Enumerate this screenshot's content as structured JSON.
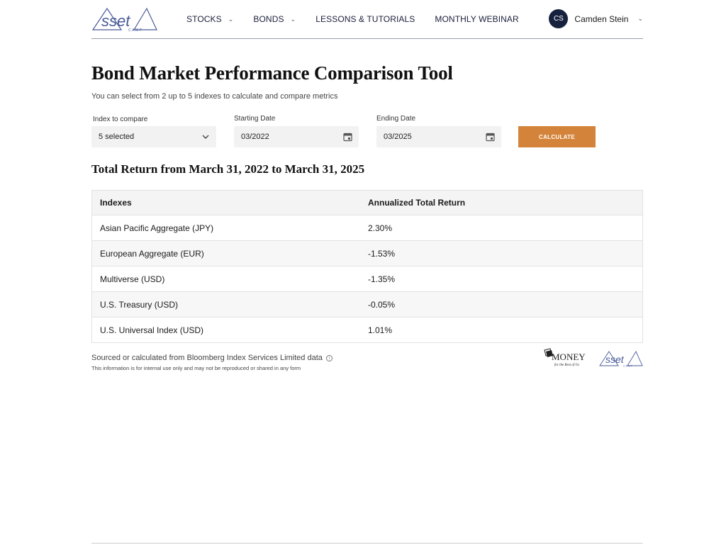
{
  "header": {
    "logo_text": "Asset",
    "logo_sub": "CAMP",
    "nav": [
      {
        "label": "STOCKS",
        "dropdown": true
      },
      {
        "label": "BONDS",
        "dropdown": true
      },
      {
        "label": "LESSONS & TUTORIALS",
        "dropdown": false
      },
      {
        "label": "MONTHLY WEBINAR",
        "dropdown": false
      }
    ],
    "user": {
      "initials": "CS",
      "name": "Camden Stein"
    }
  },
  "page": {
    "title": "Bond Market Performance Comparison Tool",
    "subtitle": "You can select from 2 up to 5 indexes to calculate and compare metrics"
  },
  "form": {
    "index_label": "Index to compare",
    "index_value": "5 selected",
    "start_label": "Starting Date",
    "start_value": "03/2022",
    "end_label": "Ending Date",
    "end_value": "03/2025",
    "calculate_label": "CALCULATE"
  },
  "results": {
    "title": "Total Return from March 31, 2022 to March 31, 2025",
    "columns": [
      "Indexes",
      "Annualized Total Return"
    ],
    "rows": [
      [
        "Asian Pacific Aggregate (JPY)",
        "2.30%"
      ],
      [
        "European Aggregate (EUR)",
        "-1.53%"
      ],
      [
        "Multiverse (USD)",
        "-1.35%"
      ],
      [
        "U.S. Treasury (USD)",
        "-0.05%"
      ],
      [
        "U.S. Universal Index (USD)",
        "1.01%"
      ]
    ]
  },
  "footer": {
    "source": "Sourced or calculated from Bloomberg Index Services Limited data",
    "disclaimer": "This information is for internal use only and may not be reproduced or shared in any form",
    "partner_money": "MONEY",
    "partner_money_tag": "for the Rest of Us",
    "partner_asset": "Asset",
    "partner_asset_sub": "CAMP"
  },
  "colors": {
    "accent": "#d4843a",
    "navy": "#16213e",
    "logo": "#4a5a9a"
  }
}
